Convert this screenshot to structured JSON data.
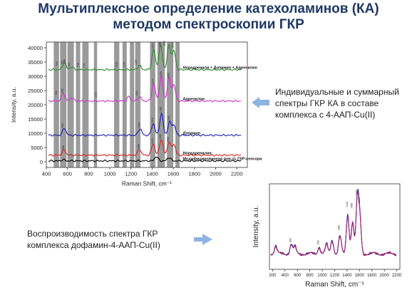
{
  "slide": {
    "title_line1": "Мультиплексное определение катехоламинов (КА)",
    "title_line2": "методом спектроскопии ГКР",
    "note_top_lines": [
      "Индивидуальные и суммарный",
      "спектры ГКР КА в составе",
      "комплекса с 4-ААП-Cu(II)"
    ],
    "note_bottom_lines": [
      "Воспроизводимость спектра ГКР",
      "комплекса дофамин-4-ААП-Cu(II)"
    ],
    "colors": {
      "title": "#1f3864",
      "arrow": "#8db3e2",
      "band": "#888888"
    }
  },
  "chart_data": [
    {
      "type": "line",
      "xlabel": "Raman Shift, cm⁻¹",
      "ylabel": "Intensity, a.u.",
      "xlim": [
        400,
        2300
      ],
      "ylim": [
        -2000,
        42000
      ],
      "xticks": [
        400,
        600,
        800,
        1000,
        1200,
        1400,
        1600,
        1800,
        2000,
        2200
      ],
      "yticks": [
        0,
        5000,
        10000,
        15000,
        20000,
        25000,
        30000,
        35000,
        40000
      ],
      "highlight_bands": [
        [
          470,
          520
        ],
        [
          530,
          590
        ],
        [
          600,
          660
        ],
        [
          680,
          720
        ],
        [
          740,
          800
        ],
        [
          850,
          880
        ],
        [
          1040,
          1090
        ],
        [
          1120,
          1160
        ],
        [
          1190,
          1230
        ],
        [
          1240,
          1290
        ],
        [
          1380,
          1430
        ],
        [
          1450,
          1520
        ],
        [
          1540,
          1600
        ],
        [
          1620,
          1660
        ]
      ],
      "series": [
        {
          "name": "Модифицированная пов-ть ГКР-сенсора",
          "color": "#000000",
          "offset": 0,
          "peaks": [
            [
              1440,
              1500
            ],
            [
              1560,
              1200
            ],
            [
              560,
              400
            ]
          ]
        },
        {
          "name": "Норадреналин",
          "color": "#d42020",
          "offset": 2000,
          "peaks": [
            [
              568,
              1800
            ],
            [
              1280,
              2000
            ],
            [
              1410,
              4000
            ],
            [
              1486,
              5500
            ],
            [
              1560,
              4500
            ],
            [
              1605,
              3800
            ]
          ]
        },
        {
          "name": "Допамин",
          "color": "#1a1ab0",
          "offset": 9000,
          "peaks": [
            [
              570,
              2500
            ],
            [
              1285,
              2300
            ],
            [
              1410,
              4000
            ],
            [
              1488,
              7500
            ],
            [
              1565,
              4500
            ],
            [
              1605,
              3500
            ]
          ]
        },
        {
          "name": "Адреналин",
          "color": "#cc33cc",
          "offset": 21000,
          "peaks": [
            [
              560,
              2800
            ],
            [
              640,
              1200
            ],
            [
              1180,
              1500
            ],
            [
              1280,
              1500
            ],
            [
              1414,
              6000
            ],
            [
              1486,
              8500
            ],
            [
              1560,
              8000
            ],
            [
              1605,
              5500
            ]
          ]
        },
        {
          "name": "Норадренали + Допамин + Адреналин",
          "color": "#2a8a2a",
          "offset": 32000,
          "peaks": [
            [
              570,
              2500
            ],
            [
              640,
              1000
            ],
            [
              1280,
              1500
            ],
            [
              1414,
              7000
            ],
            [
              1480,
              8500
            ],
            [
              1560,
              8500
            ],
            [
              1605,
              6500
            ]
          ]
        }
      ],
      "peak_labels": [
        {
          "x": 509,
          "y": 33700,
          "text": "509"
        },
        {
          "x": 557,
          "y": 34200,
          "text": "557"
        },
        {
          "x": 580,
          "y": 34600,
          "text": "580"
        },
        {
          "x": 622,
          "y": 33400,
          "text": "622"
        },
        {
          "x": 706,
          "y": 33200,
          "text": "706"
        },
        {
          "x": 763,
          "y": 33000,
          "text": "763"
        },
        {
          "x": 1070,
          "y": 33100,
          "text": "1070"
        },
        {
          "x": 1143,
          "y": 33100,
          "text": "1143"
        },
        {
          "x": 1257,
          "y": 34000,
          "text": "1257"
        },
        {
          "x": 1414,
          "y": 39500,
          "text": "1414"
        },
        {
          "x": 1480,
          "y": 40300,
          "text": "1480"
        },
        {
          "x": 1526,
          "y": 40500,
          "text": "1526"
        },
        {
          "x": 1603,
          "y": 39800,
          "text": "1603"
        },
        {
          "x": 500,
          "y": 23500,
          "text": "500"
        },
        {
          "x": 560,
          "y": 24200,
          "text": "560"
        },
        {
          "x": 879,
          "y": 22800,
          "text": "879"
        },
        {
          "x": 1262,
          "y": 23000,
          "text": "1262"
        },
        {
          "x": 1414,
          "y": 27200,
          "text": "1414"
        },
        {
          "x": 1490,
          "y": 29800,
          "text": "1490"
        },
        {
          "x": 1563,
          "y": 29300,
          "text": "1563"
        },
        {
          "x": 563,
          "y": 12000,
          "text": "563"
        },
        {
          "x": 1285,
          "y": 11800,
          "text": "1285"
        },
        {
          "x": 1410,
          "y": 13500,
          "text": "1410"
        },
        {
          "x": 1488,
          "y": 17200,
          "text": "1488"
        },
        {
          "x": 1565,
          "y": 14200,
          "text": "1565"
        },
        {
          "x": 568,
          "y": 4200,
          "text": "568"
        },
        {
          "x": 1280,
          "y": 4300,
          "text": "1280"
        },
        {
          "x": 1410,
          "y": 6400,
          "text": "1410"
        },
        {
          "x": 1486,
          "y": 7800,
          "text": "1486"
        },
        {
          "x": 1560,
          "y": 6800,
          "text": "1560"
        }
      ]
    },
    {
      "type": "line",
      "xlabel": "Raman Shift, cm⁻¹",
      "ylabel": "Intensity, a.u.",
      "xlim": [
        150,
        2250
      ],
      "ylim": [
        0,
        11000
      ],
      "xticks": [
        200,
        400,
        600,
        800,
        1000,
        1200,
        1400,
        1600,
        1800,
        2000,
        2200
      ],
      "grid": false,
      "series": [
        {
          "color": "#1a1ab0",
          "peaks": [
            [
              250,
              1000
            ],
            [
              500,
              1200
            ],
            [
              560,
              900
            ],
            [
              950,
              900
            ],
            [
              1070,
              1200
            ],
            [
              1160,
              1800
            ],
            [
              1285,
              2300
            ],
            [
              1410,
              5200
            ],
            [
              1488,
              4200
            ],
            [
              1565,
              7000
            ],
            [
              1605,
              4500
            ]
          ]
        },
        {
          "color": "#d42020",
          "peaks": [
            [
              250,
              900
            ],
            [
              500,
              1100
            ],
            [
              560,
              800
            ],
            [
              950,
              850
            ],
            [
              1070,
              1100
            ],
            [
              1160,
              1700
            ],
            [
              1285,
              2200
            ],
            [
              1410,
              4900
            ],
            [
              1488,
              4000
            ],
            [
              1565,
              6700
            ],
            [
              1605,
              4200
            ]
          ]
        },
        {
          "color": "#8a2a8a",
          "peaks": [
            [
              250,
              950
            ],
            [
              500,
              1150
            ],
            [
              560,
              850
            ],
            [
              950,
              880
            ],
            [
              1070,
              1150
            ],
            [
              1160,
              1750
            ],
            [
              1285,
              2250
            ],
            [
              1410,
              5050
            ],
            [
              1488,
              4100
            ],
            [
              1565,
              6850
            ],
            [
              1605,
              4350
            ]
          ]
        }
      ],
      "peak_labels": [
        {
          "x": 500,
          "y": 3500,
          "text": "500"
        },
        {
          "x": 950,
          "y": 3200,
          "text": "950"
        },
        {
          "x": 1280,
          "y": 5000,
          "text": "1280"
        },
        {
          "x": 1410,
          "y": 8000,
          "text": "1410"
        },
        {
          "x": 1488,
          "y": 7800,
          "text": "1488"
        },
        {
          "x": 1565,
          "y": 9500,
          "text": "1565"
        },
        {
          "x": 1605,
          "y": 8500,
          "text": "1605"
        }
      ]
    }
  ]
}
